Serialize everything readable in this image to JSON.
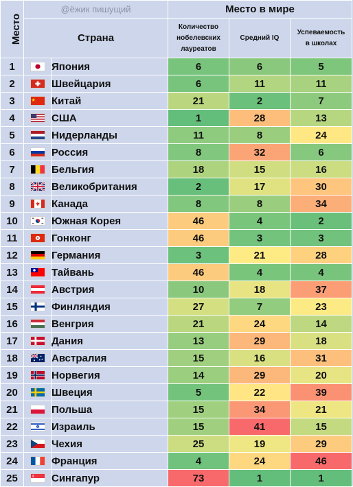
{
  "watermark": "@ёжик пишущий",
  "header": {
    "place": "Место",
    "world": "Место в мире",
    "country": "Страна",
    "metrics": [
      [
        "Количество",
        "нобелевских",
        "лауреатов"
      ],
      [
        "Средний IQ"
      ],
      [
        "Успеваемость",
        "в школах"
      ]
    ]
  },
  "chart_data": {
    "type": "table",
    "title": "Место в мире",
    "columns": [
      "Место",
      "Страна",
      "Количество нобелевских лауреатов",
      "Средний IQ",
      "Успеваемость в школах"
    ],
    "rows": [
      {
        "rank": "1",
        "flag": "japan-flag-icon",
        "country": "Япония",
        "nobel": 6,
        "iq": 6,
        "school": 5
      },
      {
        "rank": "2",
        "flag": "switzerland-flag-icon",
        "country": "Швейцария",
        "nobel": 6,
        "iq": 11,
        "school": 11
      },
      {
        "rank": "3",
        "flag": "china-flag-icon",
        "country": "Китай",
        "nobel": 21,
        "iq": 2,
        "school": 7
      },
      {
        "rank": "4",
        "flag": "usa-flag-icon",
        "country": "США",
        "nobel": 1,
        "iq": 28,
        "school": 13
      },
      {
        "rank": "5",
        "flag": "netherlands-flag-icon",
        "country": "Нидерланды",
        "nobel": 11,
        "iq": 8,
        "school": 24
      },
      {
        "rank": "6",
        "flag": "russia-flag-icon",
        "country": "Россия",
        "nobel": 8,
        "iq": 32,
        "school": 6
      },
      {
        "rank": "7",
        "flag": "belgium-flag-icon",
        "country": "Бельгия",
        "nobel": 18,
        "iq": 15,
        "school": 16
      },
      {
        "rank": "8",
        "flag": "uk-flag-icon",
        "country": "Великобритания",
        "nobel": 2,
        "iq": 17,
        "school": 30
      },
      {
        "rank": "9",
        "flag": "canada-flag-icon",
        "country": "Канада",
        "nobel": 8,
        "iq": 8,
        "school": 34
      },
      {
        "rank": "10",
        "flag": "south-korea-flag-icon",
        "country": "Южная Корея",
        "nobel": 46,
        "iq": 4,
        "school": 2
      },
      {
        "rank": "11",
        "flag": "hong-kong-flag-icon",
        "country": "Гонконг",
        "nobel": 46,
        "iq": 3,
        "school": 3
      },
      {
        "rank": "12",
        "flag": "germany-flag-icon",
        "country": "Германия",
        "nobel": 3,
        "iq": 21,
        "school": 28
      },
      {
        "rank": "13",
        "flag": "taiwan-flag-icon",
        "country": "Тайвань",
        "nobel": 46,
        "iq": 4,
        "school": 4
      },
      {
        "rank": "14",
        "flag": "austria-flag-icon",
        "country": "Австрия",
        "nobel": 10,
        "iq": 18,
        "school": 37
      },
      {
        "rank": "15",
        "flag": "finland-flag-icon",
        "country": "Финляндия",
        "nobel": 27,
        "iq": 7,
        "school": 23
      },
      {
        "rank": "16",
        "flag": "hungary-flag-icon",
        "country": "Венгрия",
        "nobel": 21,
        "iq": 24,
        "school": 14
      },
      {
        "rank": "17",
        "flag": "denmark-flag-icon",
        "country": "Дания",
        "nobel": 13,
        "iq": 29,
        "school": 18
      },
      {
        "rank": "18",
        "flag": "australia-flag-icon",
        "country": "Австралия",
        "nobel": 15,
        "iq": 16,
        "school": 31
      },
      {
        "rank": "19",
        "flag": "norway-flag-icon",
        "country": "Норвегия",
        "nobel": 14,
        "iq": 29,
        "school": 20
      },
      {
        "rank": "20",
        "flag": "sweden-flag-icon",
        "country": "Швеция",
        "nobel": 5,
        "iq": 22,
        "school": 39
      },
      {
        "rank": "21",
        "flag": "poland-flag-icon",
        "country": "Польша",
        "nobel": 15,
        "iq": 34,
        "school": 21
      },
      {
        "rank": "22",
        "flag": "israel-flag-icon",
        "country": "Израиль",
        "nobel": 15,
        "iq": 41,
        "school": 15
      },
      {
        "rank": "23",
        "flag": "czechia-flag-icon",
        "country": "Чехия",
        "nobel": 25,
        "iq": 19,
        "school": 29
      },
      {
        "rank": "24",
        "flag": "france-flag-icon",
        "country": "Франция",
        "nobel": 4,
        "iq": 24,
        "school": 46
      },
      {
        "rank": "25",
        "flag": "singapore-flag-icon",
        "country": "Сингапур",
        "nobel": 73,
        "iq": 1,
        "school": 1
      }
    ]
  },
  "colors": {
    "header_bg": "#cdd6ea",
    "scale": [
      "#63be7b",
      "#ffeb84",
      "#f8696b"
    ]
  }
}
